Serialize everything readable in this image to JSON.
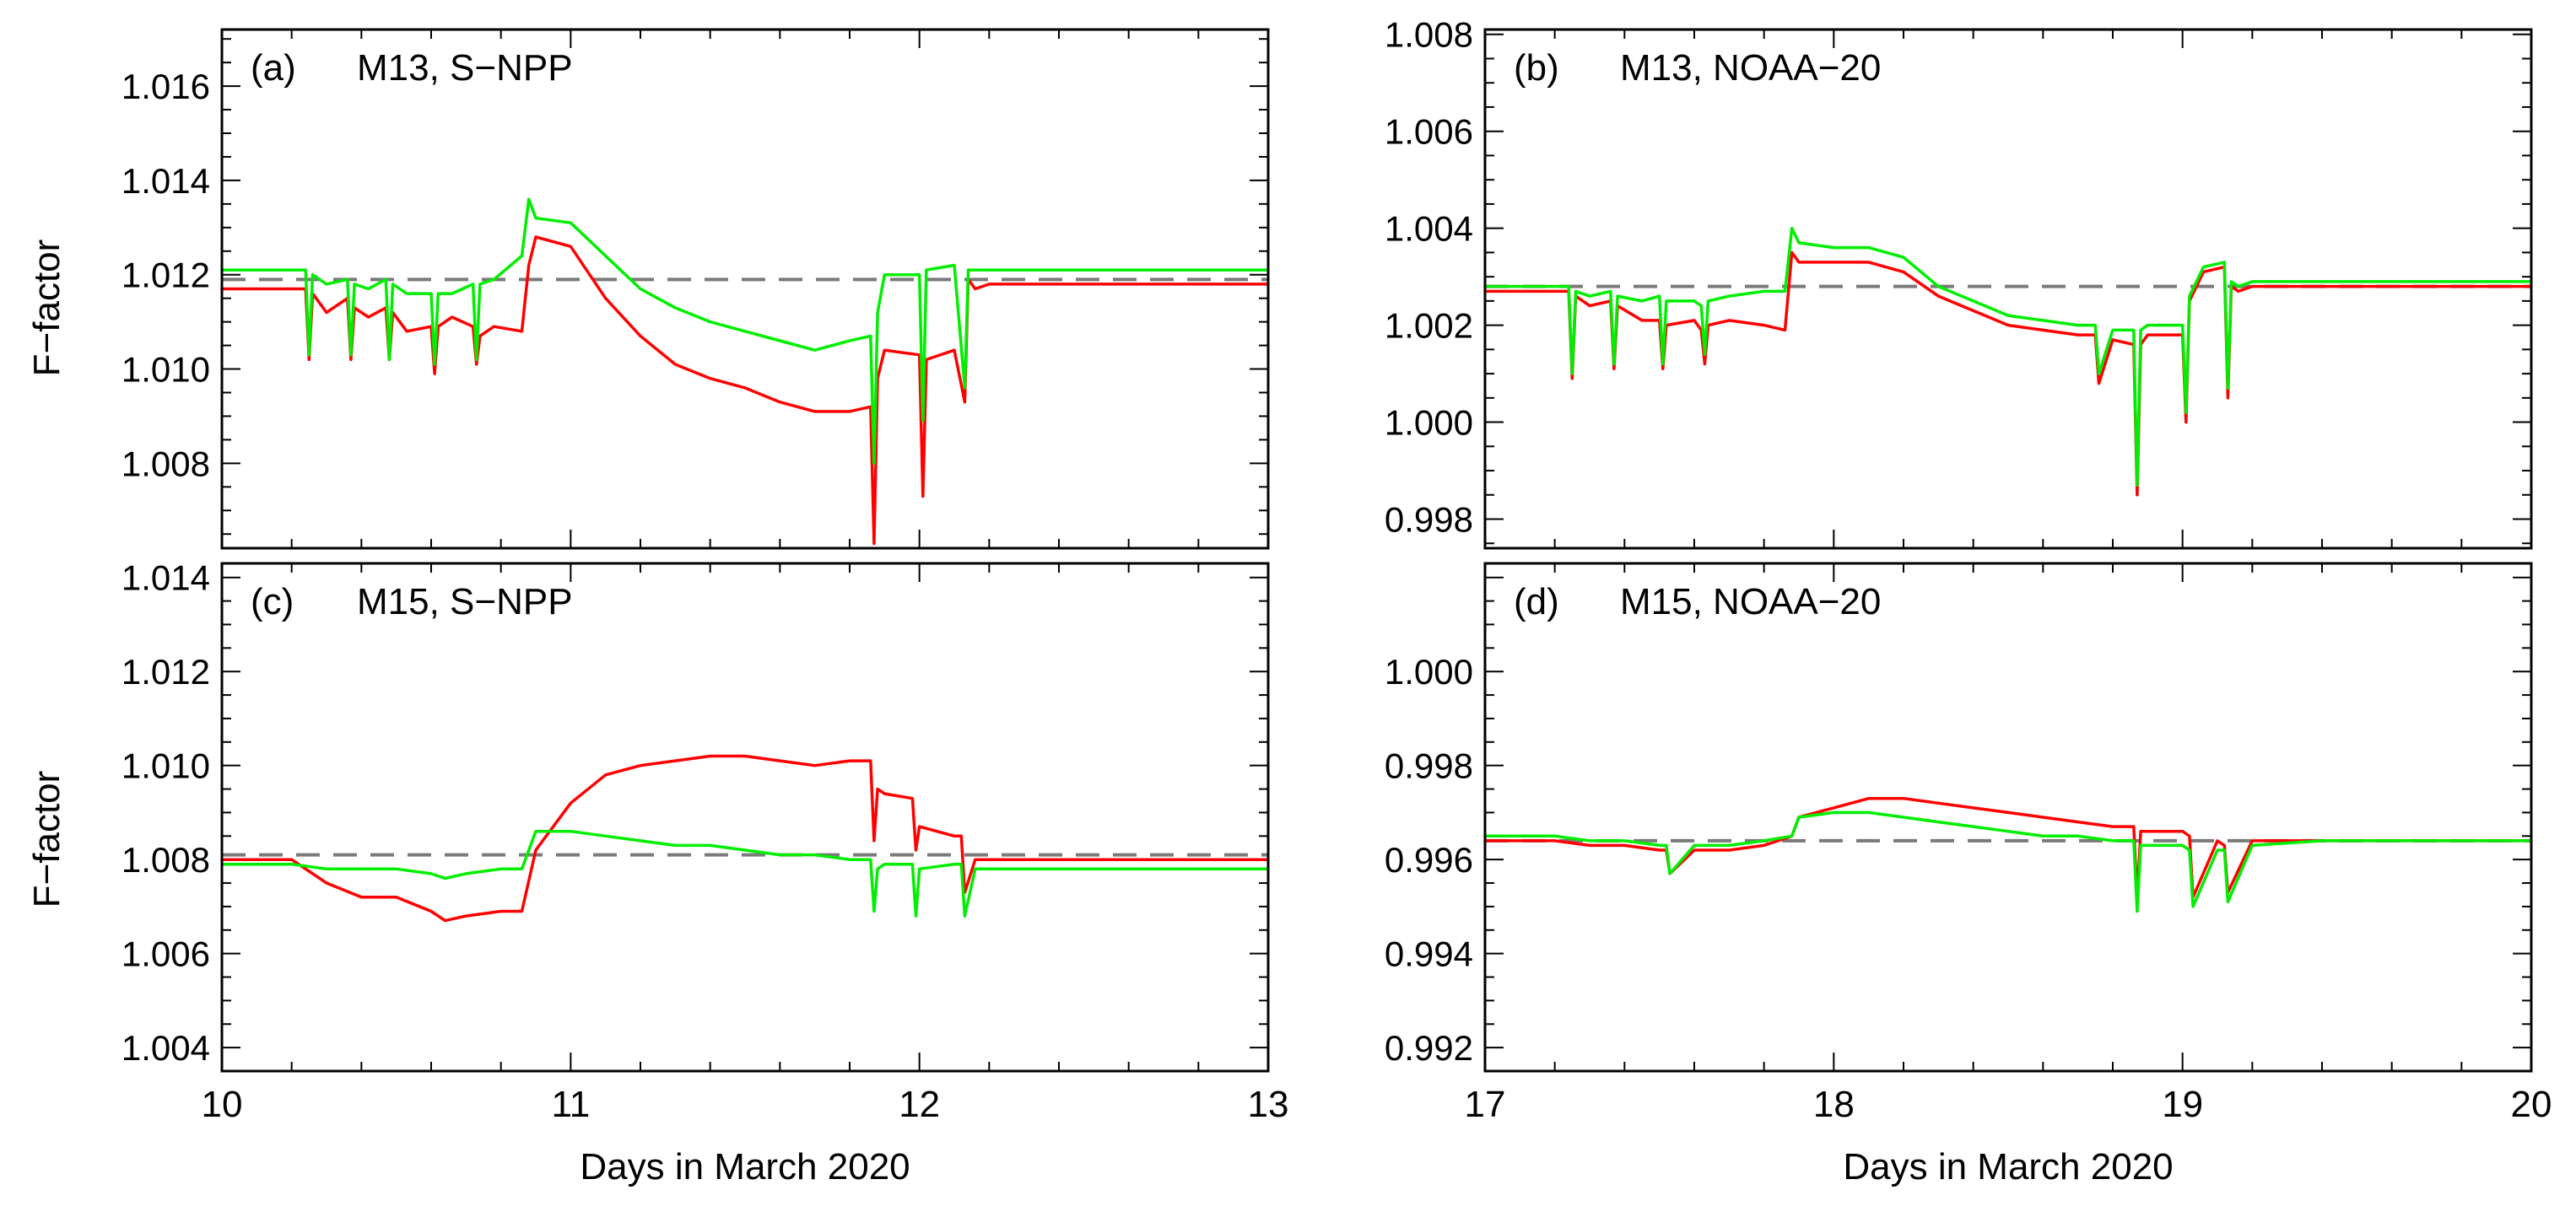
{
  "figure": {
    "xlabel": "Days in March 2020",
    "ylabel": "F−factor"
  },
  "chart_data": [
    {
      "type": "line",
      "panel_label": "(a)",
      "title": "M13, S−NPP",
      "xlim": [
        10,
        13
      ],
      "ylim": [
        1.0062,
        1.0172
      ],
      "xticks": [
        "10",
        "11",
        "12",
        "13"
      ],
      "yticks": [
        "1.008",
        "1.010",
        "1.012",
        "1.014",
        "1.016"
      ],
      "reference": 1.0119,
      "series": [
        {
          "name": "red",
          "color": "#ff0000",
          "x": [
            10.0,
            10.24,
            10.25,
            10.26,
            10.3,
            10.36,
            10.37,
            10.38,
            10.42,
            10.47,
            10.48,
            10.49,
            10.53,
            10.6,
            10.61,
            10.62,
            10.66,
            10.72,
            10.73,
            10.74,
            10.78,
            10.86,
            10.88,
            10.9,
            11.0,
            11.1,
            11.2,
            11.3,
            11.4,
            11.5,
            11.6,
            11.7,
            11.8,
            11.86,
            11.87,
            11.88,
            11.9,
            12.0,
            12.01,
            12.02,
            12.1,
            12.13,
            12.14,
            12.16,
            12.2,
            12.4,
            12.6,
            12.8,
            13.0
          ],
          "y": [
            1.0117,
            1.0117,
            1.0102,
            1.0116,
            1.0112,
            1.0115,
            1.0102,
            1.0113,
            1.0111,
            1.0113,
            1.0102,
            1.0112,
            1.0108,
            1.0109,
            1.0099,
            1.0109,
            1.0111,
            1.0109,
            1.0101,
            1.0107,
            1.0109,
            1.0108,
            1.0122,
            1.0128,
            1.0126,
            1.0115,
            1.0107,
            1.0101,
            1.0098,
            1.0096,
            1.0093,
            1.0091,
            1.0091,
            1.0092,
            1.0063,
            1.0098,
            1.0104,
            1.0103,
            1.0073,
            1.0102,
            1.0104,
            1.0093,
            1.0119,
            1.0117,
            1.0118,
            1.0118,
            1.0118,
            1.0118,
            1.0118
          ]
        },
        {
          "name": "green",
          "color": "#00ee00",
          "x": [
            10.0,
            10.24,
            10.25,
            10.26,
            10.3,
            10.36,
            10.37,
            10.38,
            10.42,
            10.47,
            10.48,
            10.49,
            10.53,
            10.6,
            10.61,
            10.62,
            10.66,
            10.72,
            10.73,
            10.74,
            10.78,
            10.86,
            10.88,
            10.9,
            11.0,
            11.1,
            11.2,
            11.3,
            11.4,
            11.5,
            11.6,
            11.7,
            11.8,
            11.86,
            11.87,
            11.88,
            11.9,
            12.0,
            12.01,
            12.02,
            12.1,
            12.13,
            12.14,
            12.16,
            12.2,
            12.4,
            12.6,
            12.8,
            13.0
          ],
          "y": [
            1.0121,
            1.0121,
            1.0103,
            1.012,
            1.0118,
            1.0119,
            1.0103,
            1.0118,
            1.0117,
            1.0119,
            1.0102,
            1.0118,
            1.0116,
            1.0116,
            1.0101,
            1.0116,
            1.0116,
            1.0118,
            1.0102,
            1.0118,
            1.0119,
            1.0124,
            1.0136,
            1.0132,
            1.0131,
            1.0124,
            1.0117,
            1.0113,
            1.011,
            1.0108,
            1.0106,
            1.0104,
            1.0106,
            1.0107,
            1.008,
            1.0112,
            1.012,
            1.012,
            1.0089,
            1.0121,
            1.0122,
            1.0096,
            1.0121,
            1.0121,
            1.0121,
            1.0121,
            1.0121,
            1.0121,
            1.0121
          ]
        }
      ]
    },
    {
      "type": "line",
      "panel_label": "(b)",
      "title": "M13, NOAA−20",
      "xlim": [
        17,
        20
      ],
      "ylim": [
        0.9974,
        1.0081
      ],
      "xticks": [
        "17",
        "18",
        "19",
        "20"
      ],
      "yticks": [
        "0.998",
        "1.000",
        "1.002",
        "1.004",
        "1.006",
        "1.008"
      ],
      "reference": 1.0028,
      "series": [
        {
          "name": "red",
          "color": "#ff0000",
          "x": [
            17.0,
            17.24,
            17.25,
            17.26,
            17.3,
            17.36,
            17.37,
            17.38,
            17.45,
            17.5,
            17.51,
            17.52,
            17.6,
            17.62,
            17.63,
            17.64,
            17.7,
            17.8,
            17.86,
            17.88,
            17.9,
            18.0,
            18.1,
            18.2,
            18.3,
            18.4,
            18.5,
            18.6,
            18.7,
            18.75,
            18.76,
            18.8,
            18.86,
            18.87,
            18.88,
            18.9,
            18.98,
            19.0,
            19.01,
            19.02,
            19.06,
            19.12,
            19.13,
            19.14,
            19.16,
            19.2,
            19.4,
            19.6,
            19.8,
            20.0
          ],
          "y": [
            1.0027,
            1.0027,
            1.0009,
            1.0026,
            1.0024,
            1.0025,
            1.0011,
            1.0024,
            1.0021,
            1.0021,
            1.0011,
            1.002,
            1.0021,
            1.0019,
            1.0012,
            1.002,
            1.0021,
            1.002,
            1.0019,
            1.0035,
            1.0033,
            1.0033,
            1.0033,
            1.0031,
            1.0026,
            1.0023,
            1.002,
            1.0019,
            1.0018,
            1.0018,
            1.0008,
            1.0017,
            1.0016,
            0.9985,
            1.0016,
            1.0018,
            1.0018,
            1.0018,
            1.0,
            1.0025,
            1.0031,
            1.0032,
            1.0005,
            1.0028,
            1.0027,
            1.0028,
            1.0028,
            1.0028,
            1.0028,
            1.0028
          ]
        },
        {
          "name": "green",
          "color": "#00ee00",
          "x": [
            17.0,
            17.24,
            17.25,
            17.26,
            17.3,
            17.36,
            17.37,
            17.38,
            17.45,
            17.5,
            17.51,
            17.52,
            17.6,
            17.62,
            17.63,
            17.64,
            17.7,
            17.8,
            17.86,
            17.88,
            17.9,
            18.0,
            18.1,
            18.2,
            18.3,
            18.4,
            18.5,
            18.6,
            18.7,
            18.75,
            18.76,
            18.8,
            18.86,
            18.87,
            18.88,
            18.9,
            18.98,
            19.0,
            19.01,
            19.02,
            19.06,
            19.12,
            19.13,
            19.14,
            19.16,
            19.2,
            19.4,
            19.6,
            19.8,
            20.0
          ],
          "y": [
            1.0028,
            1.0028,
            1.001,
            1.0027,
            1.0026,
            1.0027,
            1.0012,
            1.0026,
            1.0025,
            1.0026,
            1.0012,
            1.0025,
            1.0025,
            1.0024,
            1.0014,
            1.0025,
            1.0026,
            1.0027,
            1.0027,
            1.004,
            1.0037,
            1.0036,
            1.0036,
            1.0034,
            1.0028,
            1.0025,
            1.0022,
            1.0021,
            1.002,
            1.002,
            1.001,
            1.0019,
            1.0019,
            0.9987,
            1.0019,
            1.002,
            1.002,
            1.002,
            1.0002,
            1.0026,
            1.0032,
            1.0033,
            1.0007,
            1.0029,
            1.0028,
            1.0029,
            1.0029,
            1.0029,
            1.0029,
            1.0029
          ]
        }
      ]
    },
    {
      "type": "line",
      "panel_label": "(c)",
      "title": "M15, S−NPP",
      "xlim": [
        10,
        13
      ],
      "ylim": [
        1.0035,
        1.0143
      ],
      "xticks": [
        "10",
        "11",
        "12",
        "13"
      ],
      "yticks": [
        "1.004",
        "1.006",
        "1.008",
        "1.010",
        "1.012",
        "1.014"
      ],
      "reference": 1.0081,
      "series": [
        {
          "name": "red",
          "color": "#ff0000",
          "x": [
            10.0,
            10.2,
            10.3,
            10.4,
            10.5,
            10.6,
            10.64,
            10.7,
            10.8,
            10.86,
            10.9,
            11.0,
            11.1,
            11.2,
            11.3,
            11.4,
            11.5,
            11.6,
            11.7,
            11.8,
            11.86,
            11.87,
            11.88,
            11.9,
            11.98,
            11.99,
            12.0,
            12.1,
            12.12,
            12.13,
            12.16,
            12.3,
            12.5,
            12.7,
            12.9,
            13.0
          ],
          "y": [
            1.008,
            1.008,
            1.0075,
            1.0072,
            1.0072,
            1.0069,
            1.0067,
            1.0068,
            1.0069,
            1.0069,
            1.0082,
            1.0092,
            1.0098,
            1.01,
            1.0101,
            1.0102,
            1.0102,
            1.0101,
            1.01,
            1.0101,
            1.0101,
            1.0084,
            1.0095,
            1.0094,
            1.0093,
            1.0082,
            1.0087,
            1.0085,
            1.0085,
            1.0073,
            1.008,
            1.008,
            1.008,
            1.008,
            1.008,
            1.008
          ]
        },
        {
          "name": "green",
          "color": "#00ee00",
          "x": [
            10.0,
            10.2,
            10.3,
            10.4,
            10.5,
            10.6,
            10.64,
            10.7,
            10.8,
            10.86,
            10.9,
            11.0,
            11.1,
            11.2,
            11.3,
            11.4,
            11.5,
            11.6,
            11.7,
            11.8,
            11.86,
            11.87,
            11.88,
            11.9,
            11.98,
            11.99,
            12.0,
            12.1,
            12.12,
            12.13,
            12.16,
            12.3,
            12.5,
            12.7,
            12.9,
            13.0
          ],
          "y": [
            1.0079,
            1.0079,
            1.0078,
            1.0078,
            1.0078,
            1.0077,
            1.0076,
            1.0077,
            1.0078,
            1.0078,
            1.0086,
            1.0086,
            1.0085,
            1.0084,
            1.0083,
            1.0083,
            1.0082,
            1.0081,
            1.0081,
            1.008,
            1.008,
            1.0069,
            1.0078,
            1.0079,
            1.0079,
            1.0068,
            1.0078,
            1.0079,
            1.0079,
            1.0068,
            1.0078,
            1.0078,
            1.0078,
            1.0078,
            1.0078,
            1.0078
          ]
        }
      ]
    },
    {
      "type": "line",
      "panel_label": "(d)",
      "title": "M15, NOAA−20",
      "xlim": [
        17,
        20
      ],
      "ylim": [
        0.9915,
        1.0023
      ],
      "xticks": [
        "17",
        "18",
        "19",
        "20"
      ],
      "yticks": [
        "0.992",
        "0.994",
        "0.996",
        "0.998",
        "1.000"
      ],
      "reference": 0.9964,
      "series": [
        {
          "name": "red",
          "color": "#ff0000",
          "x": [
            17.0,
            17.2,
            17.3,
            17.4,
            17.5,
            17.52,
            17.53,
            17.6,
            17.7,
            17.8,
            17.88,
            17.9,
            18.0,
            18.1,
            18.2,
            18.3,
            18.4,
            18.5,
            18.6,
            18.7,
            18.8,
            18.86,
            18.87,
            18.88,
            18.9,
            19.0,
            19.02,
            19.03,
            19.1,
            19.12,
            19.13,
            19.2,
            19.4,
            19.6,
            19.8,
            20.0
          ],
          "y": [
            0.9964,
            0.9964,
            0.9963,
            0.9963,
            0.9962,
            0.9962,
            0.9957,
            0.9962,
            0.9962,
            0.9963,
            0.9965,
            0.9969,
            0.9971,
            0.9973,
            0.9973,
            0.9972,
            0.9971,
            0.997,
            0.9969,
            0.9968,
            0.9967,
            0.9967,
            0.9952,
            0.9966,
            0.9966,
            0.9966,
            0.9965,
            0.9952,
            0.9964,
            0.9963,
            0.9953,
            0.9964,
            0.9964,
            0.9964,
            0.9964,
            0.9964
          ]
        },
        {
          "name": "green",
          "color": "#00ee00",
          "x": [
            17.0,
            17.2,
            17.3,
            17.4,
            17.5,
            17.52,
            17.53,
            17.6,
            17.7,
            17.8,
            17.88,
            17.9,
            18.0,
            18.1,
            18.2,
            18.3,
            18.4,
            18.5,
            18.6,
            18.7,
            18.8,
            18.86,
            18.87,
            18.88,
            18.9,
            19.0,
            19.02,
            19.03,
            19.1,
            19.12,
            19.13,
            19.2,
            19.4,
            19.6,
            19.8,
            20.0
          ],
          "y": [
            0.9965,
            0.9965,
            0.9964,
            0.9964,
            0.9963,
            0.9963,
            0.9957,
            0.9963,
            0.9963,
            0.9964,
            0.9965,
            0.9969,
            0.997,
            0.997,
            0.9969,
            0.9968,
            0.9967,
            0.9966,
            0.9965,
            0.9965,
            0.9964,
            0.9964,
            0.9949,
            0.9963,
            0.9963,
            0.9963,
            0.9962,
            0.995,
            0.9962,
            0.9962,
            0.9951,
            0.9963,
            0.9964,
            0.9964,
            0.9964,
            0.9964
          ]
        }
      ]
    }
  ]
}
